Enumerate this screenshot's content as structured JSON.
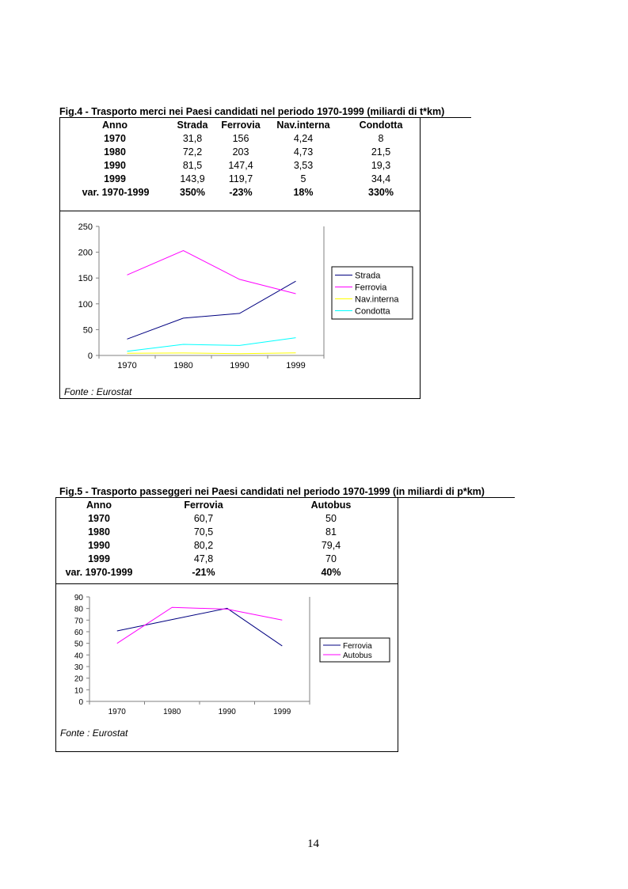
{
  "fig4": {
    "title": "Fig.4 - Trasporto merci nei Paesi candidati nel periodo 1970-1999 (miliardi di t*km)",
    "headers": [
      "Anno",
      "Strada",
      "Ferrovia",
      "Nav.interna",
      "Condotta"
    ],
    "rows": [
      [
        "1970",
        "31,8",
        "156",
        "4,24",
        "8"
      ],
      [
        "1980",
        "72,2",
        "203",
        "4,73",
        "21,5"
      ],
      [
        "1990",
        "81,5",
        "147,4",
        "3,53",
        "19,3"
      ],
      [
        "1999",
        "143,9",
        "119,7",
        "5",
        "34,4"
      ]
    ],
    "variation": [
      "var. 1970-1999",
      "350%",
      "-23%",
      "18%",
      "330%"
    ],
    "source": "Fonte : Eurostat"
  },
  "fig5": {
    "title": "Fig.5 - Trasporto passeggeri nei Paesi candidati nel periodo 1970-1999 (in miliardi di p*km)",
    "headers": [
      "Anno",
      "Ferrovia",
      "Autobus"
    ],
    "rows": [
      [
        "1970",
        "60,7",
        "50"
      ],
      [
        "1980",
        "70,5",
        "81"
      ],
      [
        "1990",
        "80,2",
        "79,4"
      ],
      [
        "1999",
        "47,8",
        "70"
      ]
    ],
    "variation": [
      "var. 1970-1999",
      "-21%",
      "40%"
    ],
    "source": "Fonte :  Eurostat"
  },
  "page_number": "14",
  "chart_data": [
    {
      "type": "line",
      "categories": [
        "1970",
        "1980",
        "1990",
        "1999"
      ],
      "series": [
        {
          "name": "Strada",
          "values": [
            31.8,
            72.2,
            81.5,
            143.9
          ],
          "color": "#000080"
        },
        {
          "name": "Ferrovia",
          "values": [
            156,
            203,
            147.4,
            119.7
          ],
          "color": "#ff00ff"
        },
        {
          "name": "Nav.interna",
          "values": [
            4.24,
            4.73,
            3.53,
            5
          ],
          "color": "#ffff00"
        },
        {
          "name": "Condotta",
          "values": [
            8,
            21.5,
            19.3,
            34.4
          ],
          "color": "#00ffff"
        }
      ],
      "ylim": [
        0,
        250
      ],
      "yticks": [
        "0",
        "50",
        "100",
        "150",
        "200",
        "250"
      ],
      "legend_position": "right",
      "grid": false
    },
    {
      "type": "line",
      "categories": [
        "1970",
        "1980",
        "1990",
        "1999"
      ],
      "series": [
        {
          "name": "Ferrovia",
          "values": [
            60.7,
            70.5,
            80.2,
            47.8
          ],
          "color": "#000080"
        },
        {
          "name": "Autobus",
          "values": [
            50,
            81,
            79.4,
            70
          ],
          "color": "#ff00ff"
        }
      ],
      "ylim": [
        0,
        90
      ],
      "yticks": [
        "0",
        "10",
        "20",
        "30",
        "40",
        "50",
        "60",
        "70",
        "80",
        "90"
      ],
      "legend_position": "right",
      "grid": false
    }
  ]
}
